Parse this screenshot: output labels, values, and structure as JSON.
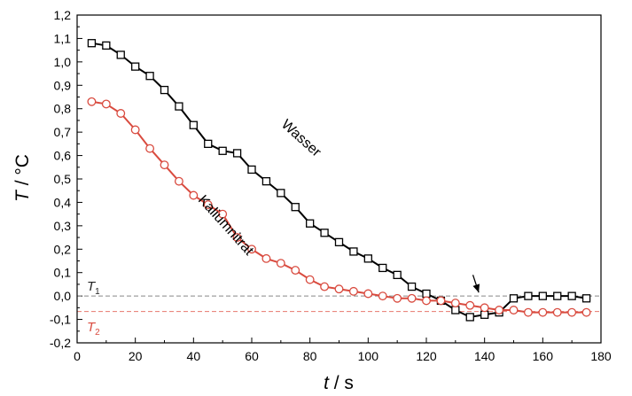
{
  "chart_data": {
    "type": "line",
    "xlabel": {
      "var": "t",
      "unit": " / s"
    },
    "ylabel": {
      "var": "T",
      "unit": " / °C"
    },
    "xlim": [
      0,
      180
    ],
    "ylim": [
      -0.2,
      1.2
    ],
    "xticks": [
      "0",
      "20",
      "40",
      "60",
      "80",
      "100",
      "120",
      "140",
      "160",
      "180"
    ],
    "yticks": [
      "-0,2",
      "-0,1",
      "0,0",
      "0,1",
      "0,2",
      "0,3",
      "0,4",
      "0,5",
      "0,6",
      "0,7",
      "0,8",
      "0,9",
      "1,0",
      "1,1",
      "1,2"
    ],
    "grid": false,
    "series": [
      {
        "name": "Wasser",
        "color": "#000000",
        "marker": "square",
        "x": [
          5,
          10,
          15,
          20,
          25,
          30,
          35,
          40,
          45,
          50,
          55,
          60,
          65,
          70,
          75,
          80,
          85,
          90,
          95,
          100,
          105,
          110,
          115,
          120,
          125,
          130,
          135,
          140,
          145,
          150,
          155,
          160,
          165,
          170,
          175
        ],
        "y": [
          1.08,
          1.07,
          1.03,
          0.98,
          0.94,
          0.88,
          0.81,
          0.73,
          0.65,
          0.62,
          0.61,
          0.54,
          0.49,
          0.44,
          0.38,
          0.31,
          0.27,
          0.23,
          0.19,
          0.16,
          0.12,
          0.09,
          0.04,
          0.01,
          -0.02,
          -0.06,
          -0.09,
          -0.08,
          -0.07,
          -0.01,
          0.0,
          0.0,
          0.0,
          0.0,
          -0.01
        ]
      },
      {
        "name": "Kaliumnitrat",
        "color": "#d94b3f",
        "marker": "circle",
        "x": [
          5,
          10,
          15,
          20,
          25,
          30,
          35,
          40,
          45,
          50,
          55,
          60,
          65,
          70,
          75,
          80,
          85,
          90,
          95,
          100,
          105,
          110,
          115,
          120,
          125,
          130,
          135,
          140,
          145,
          150,
          155,
          160,
          165,
          170,
          175
        ],
        "y": [
          0.83,
          0.82,
          0.78,
          0.71,
          0.63,
          0.56,
          0.49,
          0.43,
          0.39,
          0.35,
          0.25,
          0.2,
          0.16,
          0.14,
          0.11,
          0.07,
          0.04,
          0.03,
          0.02,
          0.01,
          0.0,
          -0.01,
          -0.01,
          -0.02,
          -0.02,
          -0.03,
          -0.04,
          -0.05,
          -0.06,
          -0.06,
          -0.07,
          -0.07,
          -0.07,
          -0.07,
          -0.07
        ]
      }
    ],
    "reference_lines": [
      {
        "label_var": "T",
        "label_sub": "1",
        "y": 0.0,
        "color": "#888888"
      },
      {
        "label_var": "T",
        "label_sub": "2",
        "y": -0.066,
        "color": "#e8776d"
      }
    ],
    "annotations": [
      {
        "text": "Wasser",
        "x": 76,
        "y": 0.66,
        "rotation": 42
      },
      {
        "text": "Kaliumnitrat",
        "x": 50,
        "y": 0.29,
        "rotation": 48
      }
    ],
    "arrow": {
      "from": [
        136,
        0.09
      ],
      "to": [
        138,
        0.015
      ]
    }
  }
}
